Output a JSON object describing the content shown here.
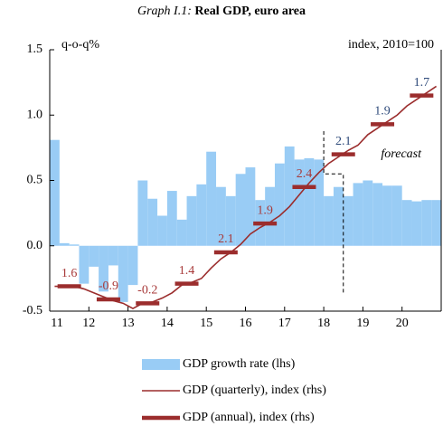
{
  "chart_data": {
    "type": "bar-line",
    "title_prefix": "Graph I.1:",
    "title": "Real GDP, euro area",
    "y_label": "q-o-q%",
    "y2_label": "index, 2010=100",
    "annotation": "forecast",
    "xlim": [
      11,
      21
    ],
    "xticks": [
      11,
      12,
      13,
      14,
      15,
      16,
      17,
      18,
      19,
      20
    ],
    "ylim": [
      -0.5,
      1.5
    ],
    "yticks": [
      -0.5,
      {
        "value": 0,
        "label": "0.0"
      },
      0.5,
      {
        "value": 1,
        "label": "1.0"
      },
      1.5
    ],
    "y2lim": [
      100,
      118
    ],
    "x": [
      11,
      11.25,
      11.5,
      11.75,
      12,
      12.25,
      12.5,
      12.75,
      13,
      13.25,
      13.5,
      13.75,
      14,
      14.25,
      14.5,
      14.75,
      15,
      15.25,
      15.5,
      15.75,
      16,
      16.25,
      16.5,
      16.75,
      17,
      17.25,
      17.5,
      17.75,
      18,
      18.25,
      18.5,
      18.75,
      19,
      19.25,
      19.5,
      19.75,
      20,
      20.25,
      20.5,
      20.75
    ],
    "series": [
      {
        "name": "GDP growth rate (lhs)",
        "color": "#99ccf5",
        "values": [
          0.81,
          0.02,
          0.01,
          -0.29,
          -0.16,
          -0.35,
          -0.15,
          -0.43,
          -0.3,
          0.5,
          0.36,
          0.23,
          0.42,
          0.2,
          0.38,
          0.47,
          0.72,
          0.45,
          0.38,
          0.55,
          0.6,
          0.35,
          0.45,
          0.63,
          0.76,
          0.66,
          0.67,
          0.66,
          0.38,
          0.45,
          0.38,
          0.48,
          0.5,
          0.48,
          0.46,
          0.46,
          0.35,
          0.34,
          0.35,
          0.35
        ]
      },
      {
        "name": "GDP (quarterly), index (rhs)",
        "color": "#9b2d2d",
        "axis": "y2",
        "values": [
          101.71,
          101.71,
          101.71,
          101.53,
          101.26,
          100.99,
          100.72,
          100.54,
          100.18,
          100.54,
          100.63,
          100.9,
          101.26,
          101.8,
          101.98,
          102.25,
          102.97,
          103.6,
          104.05,
          104.59,
          105.31,
          105.76,
          106.12,
          106.57,
          107.2,
          108.01,
          108.82,
          109.54,
          110.17,
          110.62,
          111.07,
          111.43,
          112.15,
          112.6,
          113.05,
          113.5,
          114.13,
          114.58,
          115.03,
          115.48
        ]
      },
      {
        "name": "GDP (annual), index (rhs)",
        "color": "#9b2d2d",
        "axis": "y2",
        "x": [
          11,
          12,
          13,
          14,
          15,
          16,
          17,
          18,
          19,
          20
        ],
        "values": [
          101.71,
          100.81,
          100.54,
          101.89,
          104.05,
          106.03,
          108.55,
          110.8,
          112.87,
          114.85
        ],
        "growth_labels": [
          1.6,
          -0.9,
          -0.2,
          1.4,
          2.1,
          1.9,
          2.4,
          2.1,
          1.9,
          1.7
        ],
        "growth_label_colors": [
          "#a83a3a",
          "#a83a3a",
          "#a83a3a",
          "#a83a3a",
          "#a83a3a",
          "#a83a3a",
          "#a83a3a",
          "#2e4a7a",
          "#2e4a7a",
          "#2e4a7a"
        ]
      }
    ]
  }
}
